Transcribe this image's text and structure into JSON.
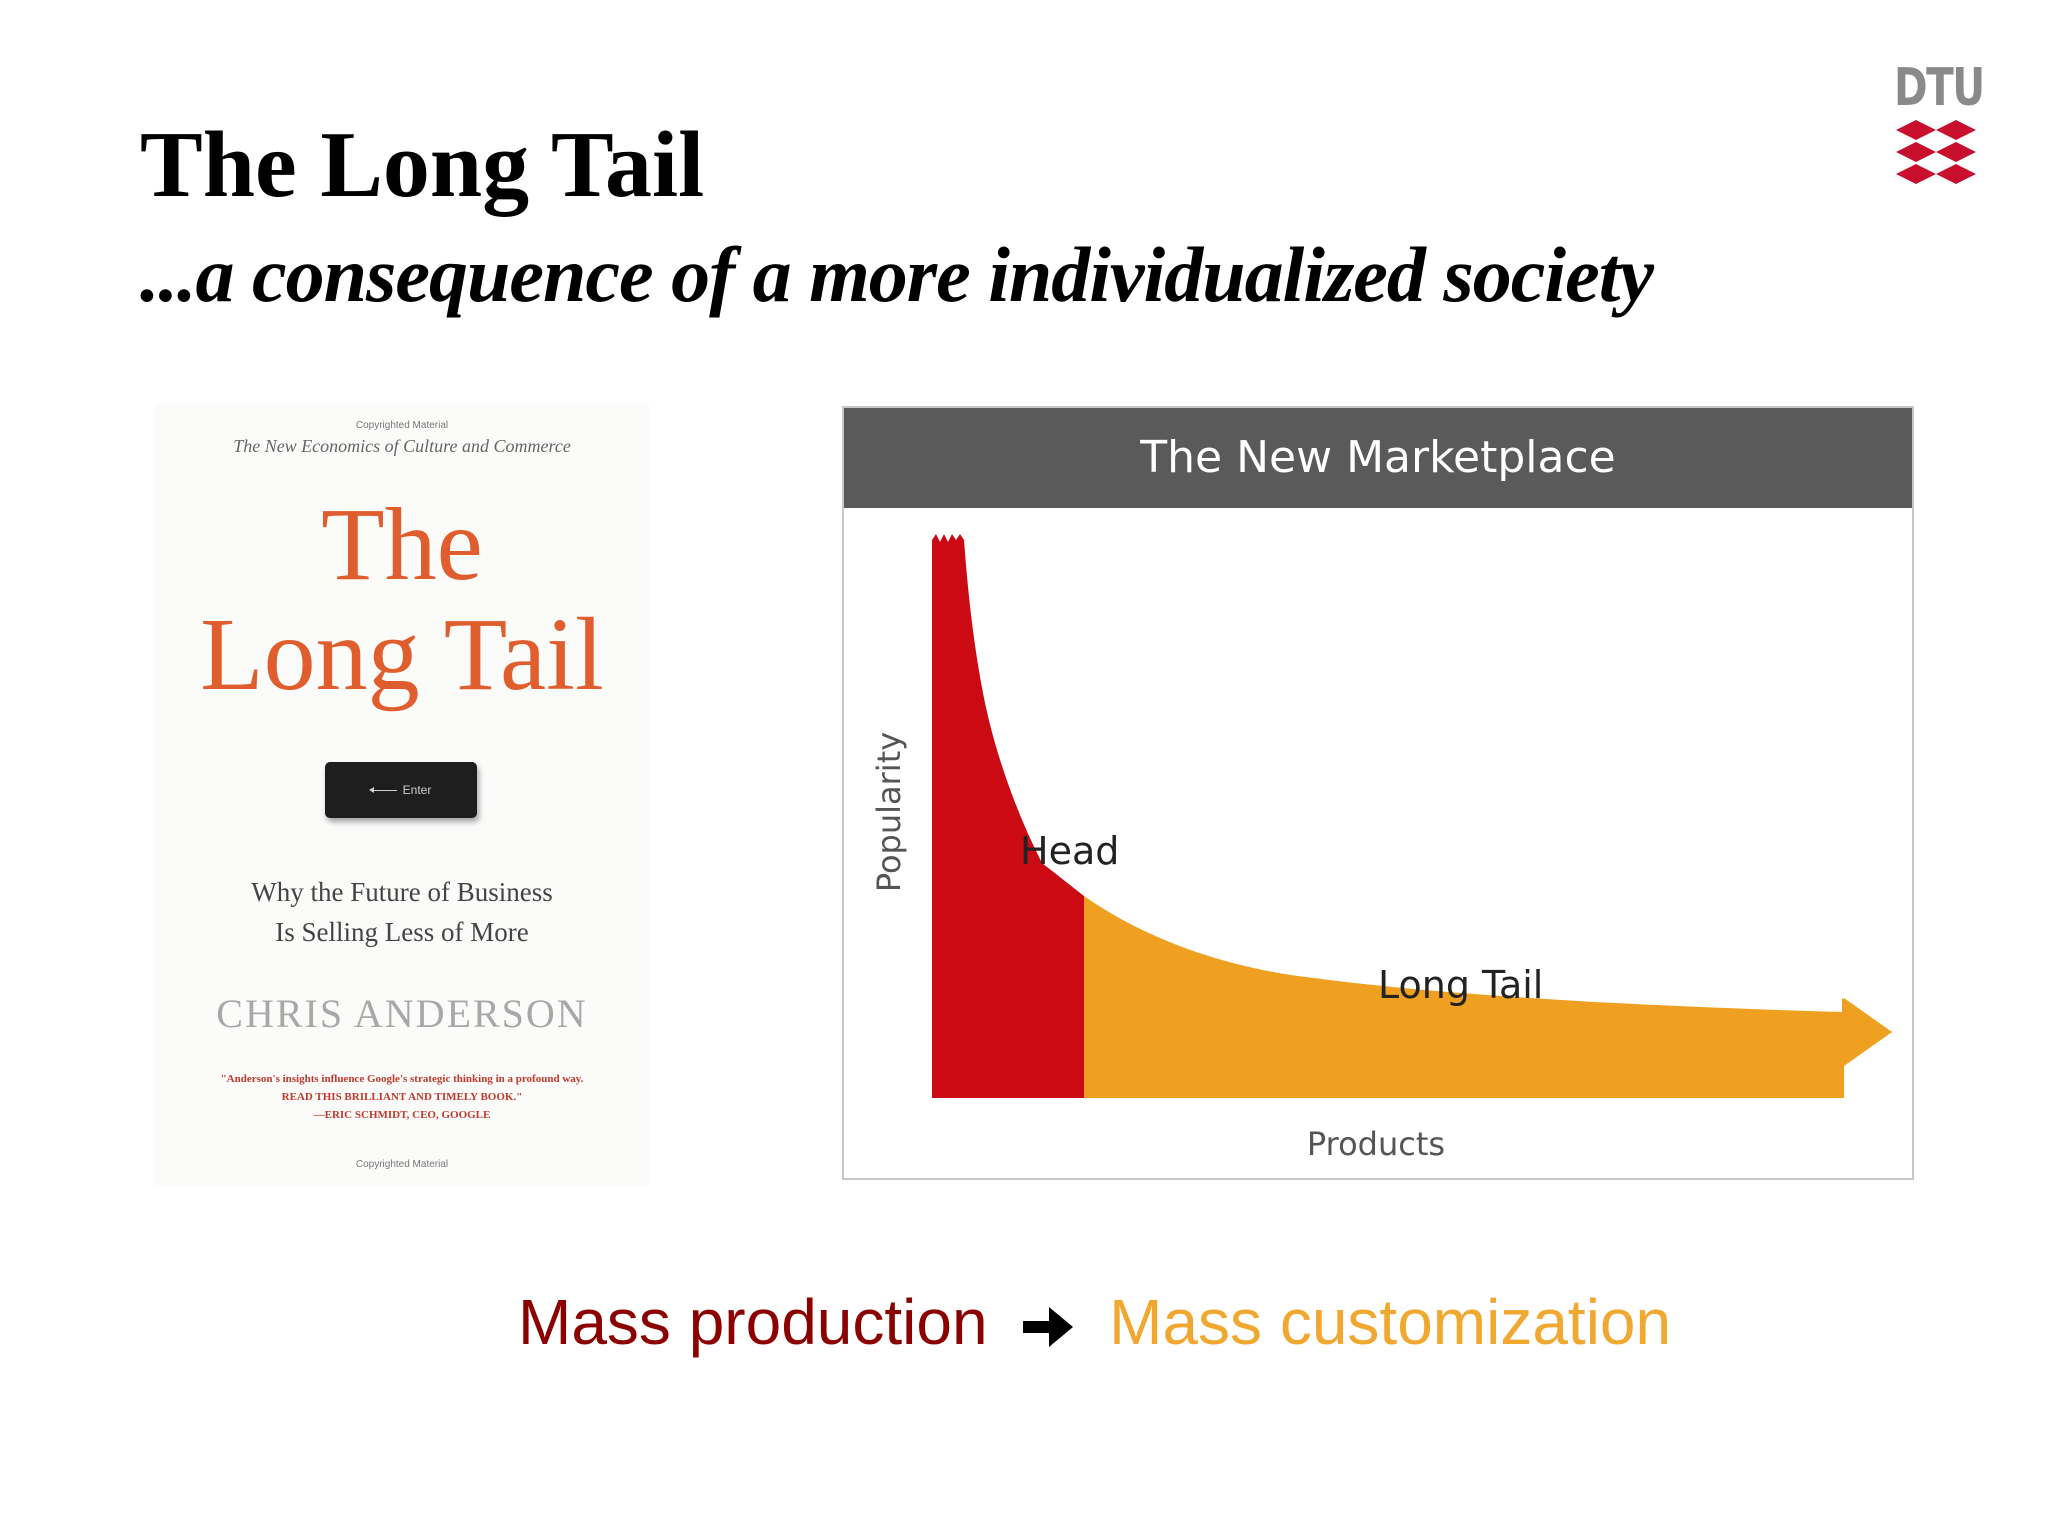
{
  "slide": {
    "title": "The Long Tail",
    "subtitle": "...a consequence of a more individualized society"
  },
  "logo": {
    "text": "DTU",
    "color": "#c8102e"
  },
  "book": {
    "copyright_top": "Copyrighted Material",
    "series": "The New Economics of Culture and Commerce",
    "title_line1": "The",
    "title_line2": "Long Tail",
    "key_label": "Enter",
    "tagline_line1": "Why the Future of Business",
    "tagline_line2": "Is Selling Less of More",
    "author": "CHRIS ANDERSON",
    "quote_line1": "\"Anderson's insights influence Google's strategic thinking in a profound way.",
    "quote_line2": "READ THIS BRILLIANT AND TIMELY BOOK.\"",
    "quote_line3": "—ERIC SCHMIDT, CEO, GOOGLE",
    "copyright_bottom": "Copyrighted Material",
    "title_color": "#e05d2e"
  },
  "diagram": {
    "header": "The New Marketplace",
    "y_axis_label": "Popularity",
    "x_axis_label": "Products",
    "head_label": "Head",
    "tail_label": "Long Tail",
    "head_color": "#cc0a14",
    "tail_color": "#f0a020"
  },
  "footer": {
    "left": "Mass production",
    "right": "Mass customization",
    "left_color": "#8b0000",
    "right_color": "#f0a830"
  }
}
